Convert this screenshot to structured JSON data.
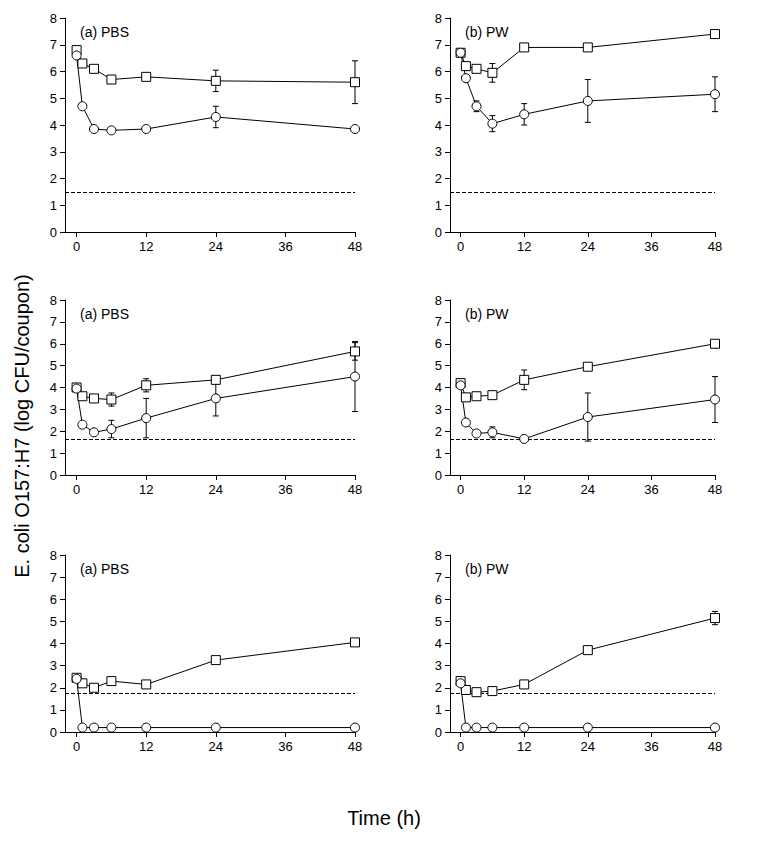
{
  "ylabel": "E. coli O157:H7 (log CFU/coupon)",
  "xlabel": "Time (h)",
  "chart_data": [
    {
      "type": "line",
      "title": "(a) PBS",
      "grid": false,
      "xlim": [
        -2,
        48
      ],
      "xticks": [
        0,
        12,
        24,
        36,
        48
      ],
      "ylim": [
        0,
        8
      ],
      "yticks": [
        0,
        1,
        2,
        3,
        4,
        5,
        6,
        7,
        8
      ],
      "x": [
        0,
        1,
        3,
        6,
        12,
        24,
        48
      ],
      "reference_line": {
        "value": 1.5,
        "line_style": "dashed"
      },
      "series": [
        {
          "marker": "square",
          "color": "#000000",
          "values": [
            6.8,
            6.3,
            6.1,
            5.7,
            5.8,
            5.65,
            5.6
          ],
          "errors": [
            null,
            null,
            null,
            null,
            null,
            0.4,
            0.8
          ]
        },
        {
          "marker": "circle",
          "color": "#000000",
          "values": [
            6.6,
            4.7,
            3.85,
            3.8,
            3.85,
            4.3,
            3.85
          ],
          "errors": [
            null,
            null,
            null,
            null,
            null,
            0.4,
            null
          ]
        }
      ]
    },
    {
      "type": "line",
      "title": "(b) PW",
      "grid": false,
      "xlim": [
        -2,
        48
      ],
      "xticks": [
        0,
        12,
        24,
        36,
        48
      ],
      "ylim": [
        0,
        8
      ],
      "yticks": [
        0,
        1,
        2,
        3,
        4,
        5,
        6,
        7,
        8
      ],
      "x": [
        0,
        1,
        3,
        6,
        12,
        24,
        48
      ],
      "reference_line": {
        "value": 1.5,
        "line_style": "dashed"
      },
      "series": [
        {
          "marker": "square",
          "color": "#000000",
          "values": [
            6.7,
            6.2,
            6.1,
            5.95,
            6.9,
            6.9,
            7.4
          ],
          "errors": [
            null,
            null,
            null,
            0.35,
            null,
            null,
            null
          ]
        },
        {
          "marker": "circle",
          "color": "#000000",
          "values": [
            6.7,
            5.75,
            4.7,
            4.05,
            4.4,
            4.9,
            5.15
          ],
          "errors": [
            null,
            null,
            0.2,
            0.3,
            0.4,
            0.8,
            0.65
          ]
        }
      ]
    },
    {
      "type": "line",
      "title": "(a) PBS",
      "grid": false,
      "xlim": [
        -2,
        48
      ],
      "xticks": [
        0,
        12,
        24,
        36,
        48
      ],
      "ylim": [
        0,
        8
      ],
      "yticks": [
        0,
        1,
        2,
        3,
        4,
        5,
        6,
        7,
        8
      ],
      "x": [
        0,
        1,
        3,
        6,
        12,
        24,
        48
      ],
      "reference_line": {
        "value": 1.65,
        "line_style": "dashed"
      },
      "series": [
        {
          "marker": "square",
          "color": "#000000",
          "values": [
            4.0,
            3.6,
            3.5,
            3.45,
            4.1,
            4.35,
            5.65
          ],
          "errors": [
            null,
            null,
            null,
            0.3,
            0.3,
            null,
            0.4
          ]
        },
        {
          "marker": "circle",
          "color": "#000000",
          "values": [
            3.95,
            2.3,
            1.95,
            2.1,
            2.6,
            3.5,
            4.5
          ],
          "errors": [
            null,
            null,
            null,
            0.4,
            0.9,
            0.8,
            1.6
          ]
        }
      ]
    },
    {
      "type": "line",
      "title": "(b) PW",
      "grid": false,
      "xlim": [
        -2,
        48
      ],
      "xticks": [
        0,
        12,
        24,
        36,
        48
      ],
      "ylim": [
        0,
        8
      ],
      "yticks": [
        0,
        1,
        2,
        3,
        4,
        5,
        6,
        7,
        8
      ],
      "x": [
        0,
        1,
        3,
        6,
        12,
        24,
        48
      ],
      "reference_line": {
        "value": 1.65,
        "line_style": "dashed"
      },
      "series": [
        {
          "marker": "square",
          "color": "#000000",
          "values": [
            4.2,
            3.55,
            3.6,
            3.65,
            4.35,
            4.95,
            6.0
          ],
          "errors": [
            null,
            null,
            null,
            null,
            0.45,
            null,
            null
          ]
        },
        {
          "marker": "circle",
          "color": "#000000",
          "values": [
            4.1,
            2.4,
            1.9,
            1.95,
            1.65,
            2.65,
            3.45
          ],
          "errors": [
            null,
            null,
            null,
            0.25,
            null,
            1.1,
            1.05
          ]
        }
      ]
    },
    {
      "type": "line",
      "title": "(a) PBS",
      "grid": false,
      "xlim": [
        -2,
        48
      ],
      "xticks": [
        0,
        12,
        24,
        36,
        48
      ],
      "ylim": [
        0,
        8
      ],
      "yticks": [
        0,
        1,
        2,
        3,
        4,
        5,
        6,
        7,
        8
      ],
      "x": [
        0,
        1,
        3,
        6,
        12,
        24,
        48
      ],
      "reference_line": {
        "value": 1.75,
        "line_style": "dashed"
      },
      "series": [
        {
          "marker": "square",
          "color": "#000000",
          "values": [
            2.45,
            2.2,
            2.0,
            2.3,
            2.15,
            3.25,
            4.05
          ],
          "errors": [
            null,
            null,
            null,
            null,
            null,
            null,
            null
          ]
        },
        {
          "marker": "circle",
          "color": "#000000",
          "values": [
            2.4,
            0.2,
            0.2,
            0.2,
            0.2,
            0.2,
            0.2
          ],
          "errors": [
            null,
            null,
            null,
            null,
            null,
            null,
            null
          ]
        }
      ]
    },
    {
      "type": "line",
      "title": "(b) PW",
      "grid": false,
      "xlim": [
        -2,
        48
      ],
      "xticks": [
        0,
        12,
        24,
        36,
        48
      ],
      "ylim": [
        0,
        8
      ],
      "yticks": [
        0,
        1,
        2,
        3,
        4,
        5,
        6,
        7,
        8
      ],
      "x": [
        0,
        1,
        3,
        6,
        12,
        24,
        48
      ],
      "reference_line": {
        "value": 1.75,
        "line_style": "dashed"
      },
      "series": [
        {
          "marker": "square",
          "color": "#000000",
          "values": [
            2.3,
            1.9,
            1.8,
            1.85,
            2.15,
            3.7,
            5.15
          ],
          "errors": [
            null,
            null,
            null,
            null,
            null,
            null,
            0.3
          ]
        },
        {
          "marker": "circle",
          "color": "#000000",
          "values": [
            2.2,
            0.2,
            0.2,
            0.2,
            0.2,
            0.2,
            0.2
          ],
          "errors": [
            null,
            null,
            null,
            null,
            null,
            null,
            null
          ]
        }
      ]
    }
  ]
}
